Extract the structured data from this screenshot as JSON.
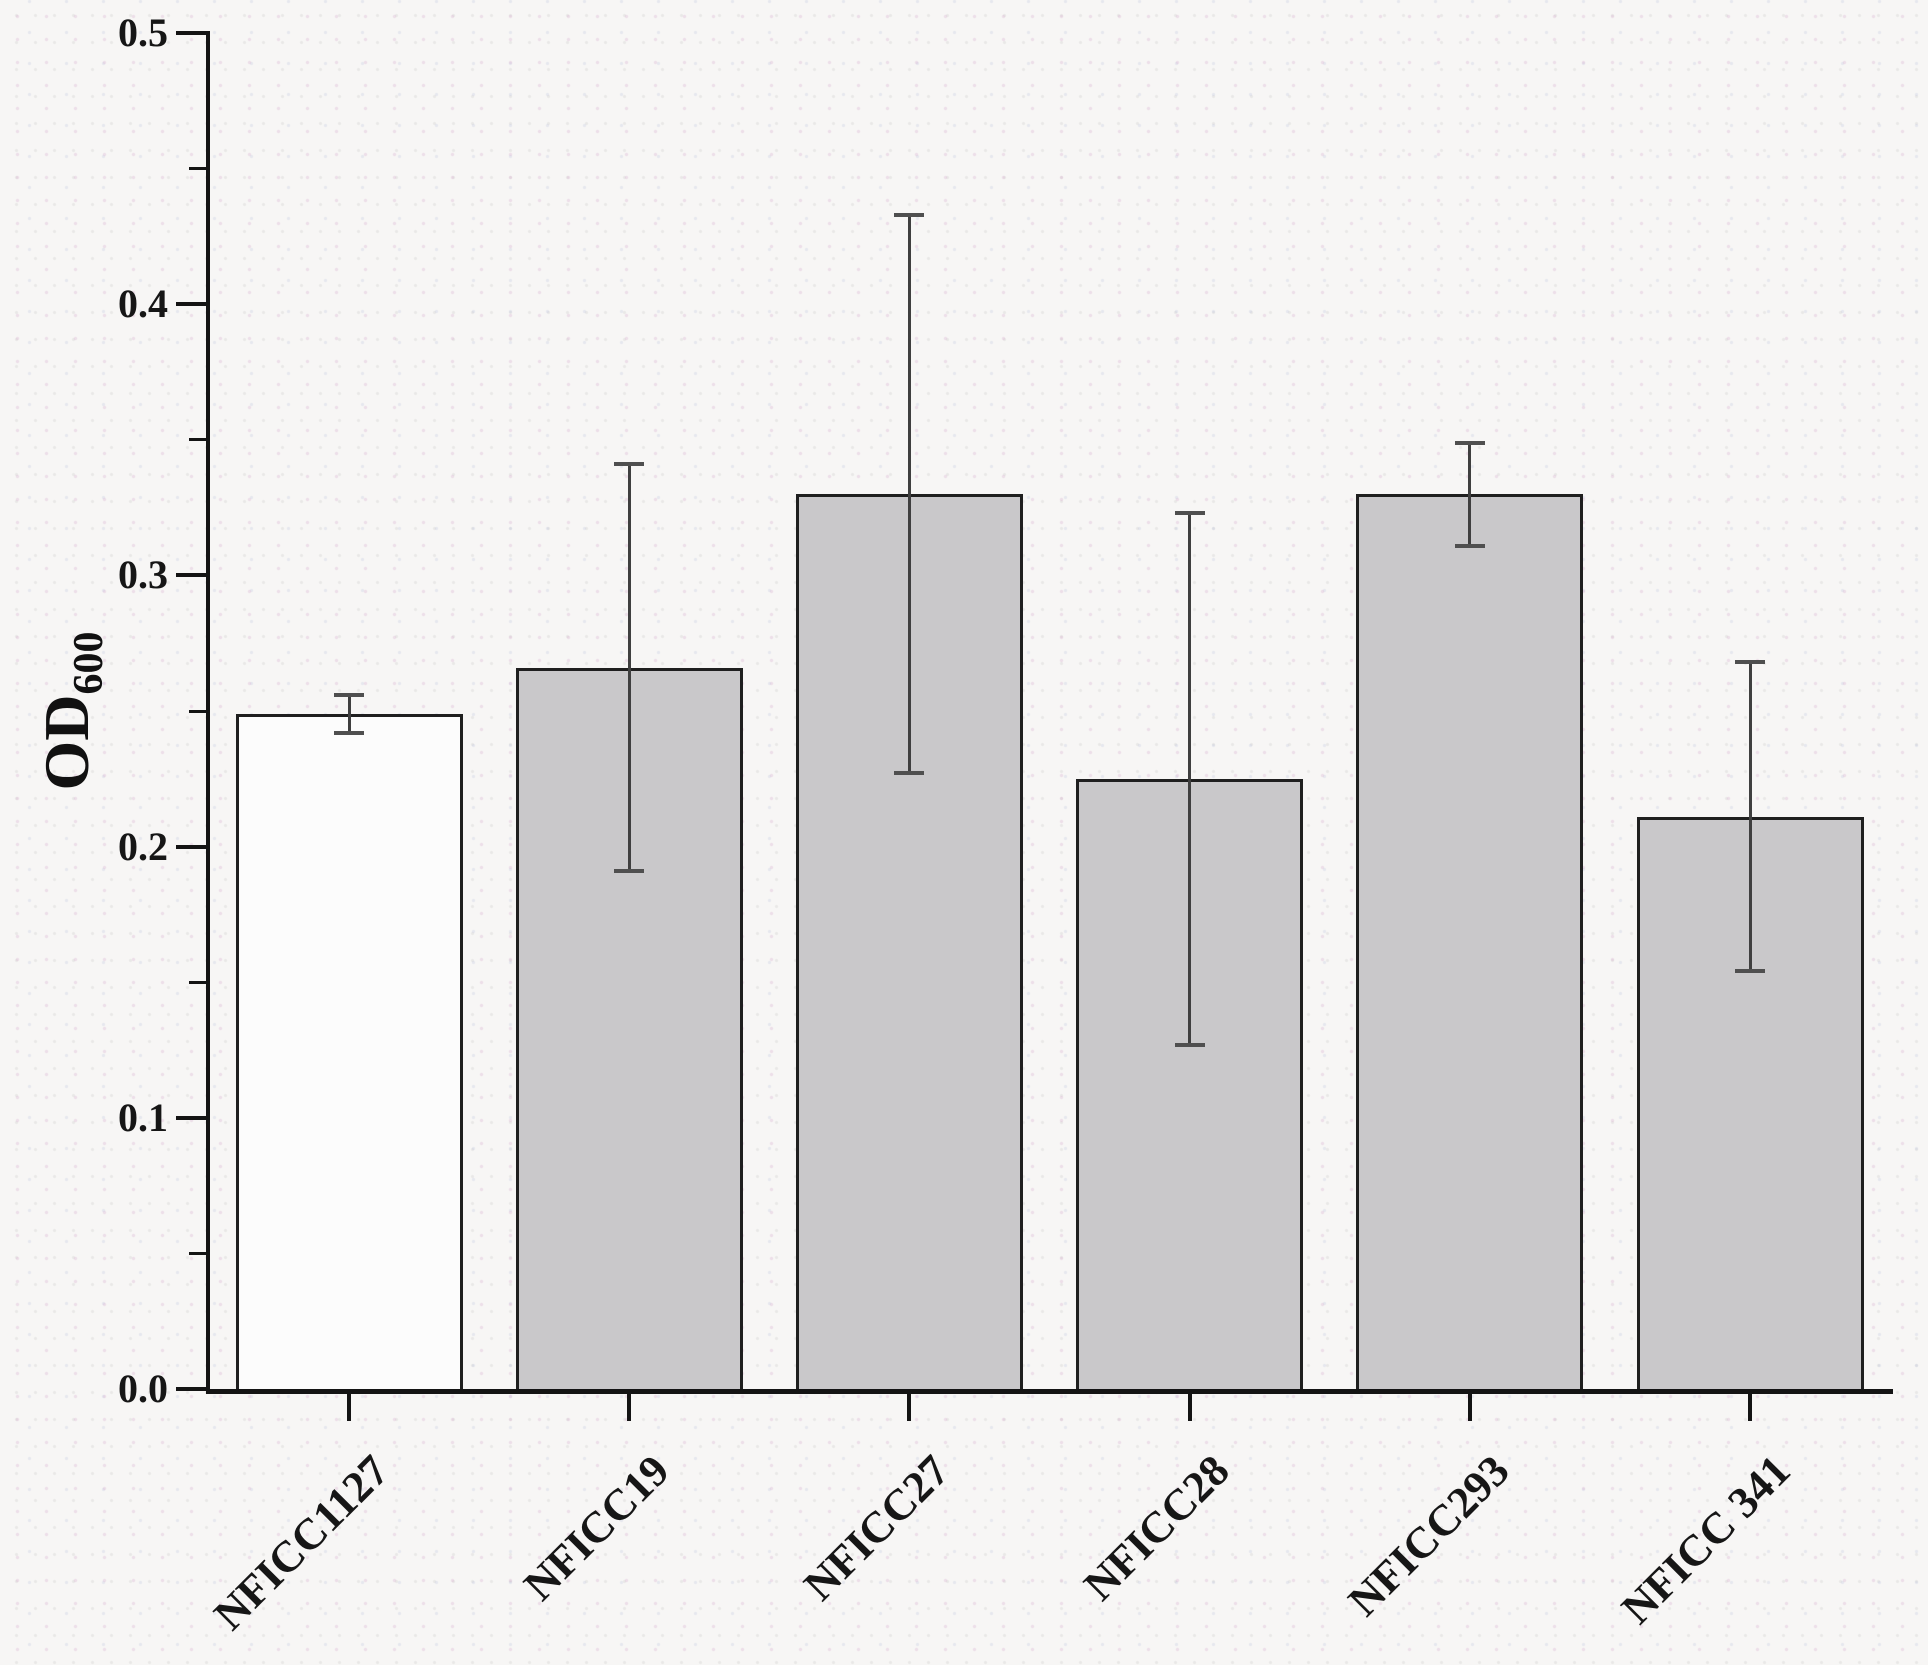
{
  "chart_data": {
    "type": "bar",
    "title": "",
    "ylabel_main": "OD",
    "ylabel_sub": "600",
    "xlabel": "",
    "ylim": [
      0,
      0.5
    ],
    "y_tick_values": [
      0.0,
      0.1,
      0.2,
      0.3,
      0.4,
      0.5
    ],
    "y_tick_labels": [
      "0.0",
      "0.1",
      "0.2",
      "0.3",
      "0.4",
      "0.5"
    ],
    "y_minor_tick_values": [
      0.05,
      0.15,
      0.25,
      0.35,
      0.45
    ],
    "grid": false,
    "legend": false,
    "categories": [
      "NFICC1127",
      "NFICC19",
      "NFICC27",
      "NFICC28",
      "NFICC293",
      "NFICC 341"
    ],
    "values": [
      0.249,
      0.266,
      0.33,
      0.225,
      0.33,
      0.211
    ],
    "errors": [
      0.007,
      0.075,
      0.103,
      0.098,
      0.019,
      0.057
    ],
    "bar_fill_colors": [
      "#fcfcfc",
      "#c9c8ca",
      "#c9c8ca",
      "#c9c8ca",
      "#c9c8ca",
      "#c9c8ca"
    ],
    "bar_border_color": "#1f1f1f",
    "error_bar_color": "#3f3f3f",
    "axis_color": "#141414",
    "text_color": "#161616"
  }
}
